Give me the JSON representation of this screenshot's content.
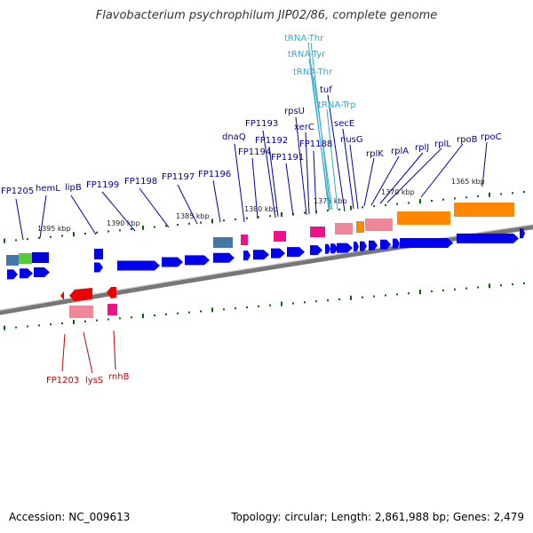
{
  "title": "Flavobacterium psychrophilum JIP02/86, complete genome",
  "footer": {
    "accession": "Accession: NC_009613",
    "summary": "Topology: circular; Length: 2,861,988 bp; Genes: 2,479"
  },
  "colors": {
    "cds": "#0000ee",
    "label_dark": "#00009a",
    "label_trna": "#33aacc",
    "label_red": "#cc0000",
    "tick_green": "#006600",
    "backbone": "#888888",
    "rrna_orange": "#ff8800",
    "pink": "#ee88aa",
    "magenta": "#ee1188",
    "steel": "#4477aa",
    "red": "#ee0000"
  },
  "kbp_labels": [
    "1365 kbp",
    "1370 kbp",
    "1375 kbp",
    "1380 kbp",
    "1385 kbp",
    "1390 kbp",
    "1395 kbp"
  ],
  "upper_labels": [
    {
      "text": "FP1205"
    },
    {
      "text": "hemL"
    },
    {
      "text": "lipB"
    },
    {
      "text": "FP1199"
    },
    {
      "text": "FP1198"
    },
    {
      "text": "FP1197"
    },
    {
      "text": "FP1196"
    },
    {
      "text": "dnaQ"
    },
    {
      "text": "FP1194"
    },
    {
      "text": "FP1193"
    },
    {
      "text": "FP1192"
    },
    {
      "text": "FP1191"
    },
    {
      "text": "rpsU"
    },
    {
      "text": "FP1188"
    },
    {
      "text": "xerC"
    },
    {
      "text": "tuf"
    },
    {
      "text": "secE"
    },
    {
      "text": "nusG"
    },
    {
      "text": "rplK"
    },
    {
      "text": "rplA"
    },
    {
      "text": "rplJ"
    },
    {
      "text": "rplL"
    },
    {
      "text": "rpoB"
    },
    {
      "text": "rpoC"
    }
  ],
  "trna_labels": [
    {
      "text": "tRNA-Thr"
    },
    {
      "text": "tRNA-Tyr"
    },
    {
      "text": "tRNA-Thr"
    },
    {
      "text": "tRNA-Trp"
    }
  ],
  "lower_labels": [
    {
      "text": "FP1203"
    },
    {
      "text": "lysS"
    },
    {
      "text": "rnhB"
    }
  ]
}
